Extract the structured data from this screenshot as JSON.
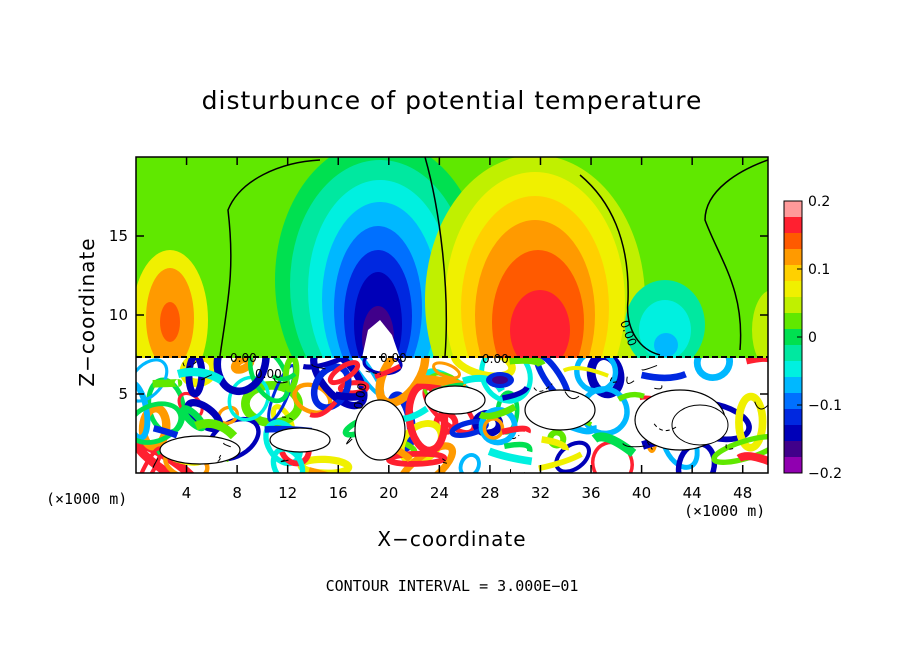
{
  "chart_data": {
    "type": "heatmap",
    "title": "disturbunce of potential temperature",
    "xlabel": "X−coordinate",
    "ylabel": "Z−coordinate",
    "x_unit_left": "(×1000 m)",
    "x_unit_right": "(×1000 m)",
    "footer": "CONTOUR INTERVAL = 3.000E−01",
    "xlim": [
      0,
      50
    ],
    "ylim": [
      0,
      20
    ],
    "x_ticks": [
      4,
      8,
      12,
      16,
      20,
      24,
      28,
      32,
      36,
      40,
      44,
      48
    ],
    "x_tick_labels": [
      "4",
      "8",
      "12",
      "16",
      "20",
      "24",
      "28",
      "32",
      "36",
      "40",
      "44",
      "48"
    ],
    "y_ticks": [
      5,
      10,
      15
    ],
    "y_tick_labels": [
      "5",
      "10",
      "15"
    ],
    "colorbar": {
      "range": [
        -0.2,
        0.2
      ],
      "tick_values": [
        0.2,
        0.1,
        0,
        -0.1,
        -0.2
      ],
      "tick_labels": [
        "0.2",
        "0.1",
        "0",
        "−0.1",
        "−0.2"
      ],
      "colors": [
        "#ff9a9a",
        "#ff2030",
        "#ff5a00",
        "#ff9a00",
        "#ffd000",
        "#f0f000",
        "#c0f000",
        "#60e800",
        "#00e050",
        "#00e8a0",
        "#00f0e0",
        "#00b8ff",
        "#0070ff",
        "#0028e0",
        "#0000b8",
        "#40008a",
        "#9000b0"
      ]
    },
    "contour_labels": [
      "0.00",
      "0.00",
      "0.00",
      "0.00",
      "0.00",
      "0.00"
    ],
    "anomalies": [
      {
        "x": 2.5,
        "z": 10,
        "value": 0.12
      },
      {
        "x": 19,
        "z": 11.5,
        "value": -0.19
      },
      {
        "x": 30,
        "z": 10.5,
        "value": 0.16
      },
      {
        "x": 42,
        "z": 9,
        "value": -0.09
      }
    ]
  }
}
